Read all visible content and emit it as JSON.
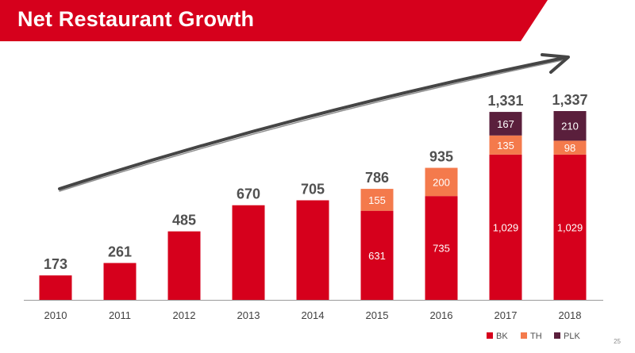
{
  "title": "Net Restaurant Growth",
  "page_number": "25",
  "colors": {
    "brand": "#D6001C",
    "BK": "#D6001C",
    "TH": "#F47A4C",
    "PLK": "#5A1F3C",
    "total_label": "#505050",
    "axis_label": "#404040",
    "arrow": "#454545"
  },
  "chart_data": {
    "type": "bar",
    "stacked": true,
    "title": "Net Restaurant Growth",
    "xlabel": "",
    "ylabel": "",
    "ylim": [
      0,
      1400
    ],
    "grid": false,
    "legend": "bottom-right",
    "categories": [
      "2010",
      "2011",
      "2012",
      "2013",
      "2014",
      "2015",
      "2016",
      "2017",
      "2018"
    ],
    "series": [
      {
        "name": "BK",
        "values": [
          173,
          261,
          485,
          670,
          705,
          631,
          735,
          1029,
          1029
        ],
        "labels": [
          null,
          null,
          null,
          null,
          null,
          "631",
          "735",
          "1,029",
          "1,029"
        ]
      },
      {
        "name": "TH",
        "values": [
          0,
          0,
          0,
          0,
          0,
          155,
          200,
          135,
          98
        ],
        "labels": [
          null,
          null,
          null,
          null,
          null,
          "155",
          "200",
          "135",
          "98"
        ]
      },
      {
        "name": "PLK",
        "values": [
          0,
          0,
          0,
          0,
          0,
          0,
          0,
          167,
          210
        ],
        "labels": [
          null,
          null,
          null,
          null,
          null,
          null,
          null,
          "167",
          "210"
        ]
      }
    ],
    "totals": [
      173,
      261,
      485,
      670,
      705,
      786,
      935,
      1331,
      1337
    ],
    "total_labels": [
      "173",
      "261",
      "485",
      "670",
      "705",
      "786",
      "935",
      "1,331",
      "1,337"
    ],
    "annotations": [
      "upward-trend-arrow"
    ]
  }
}
